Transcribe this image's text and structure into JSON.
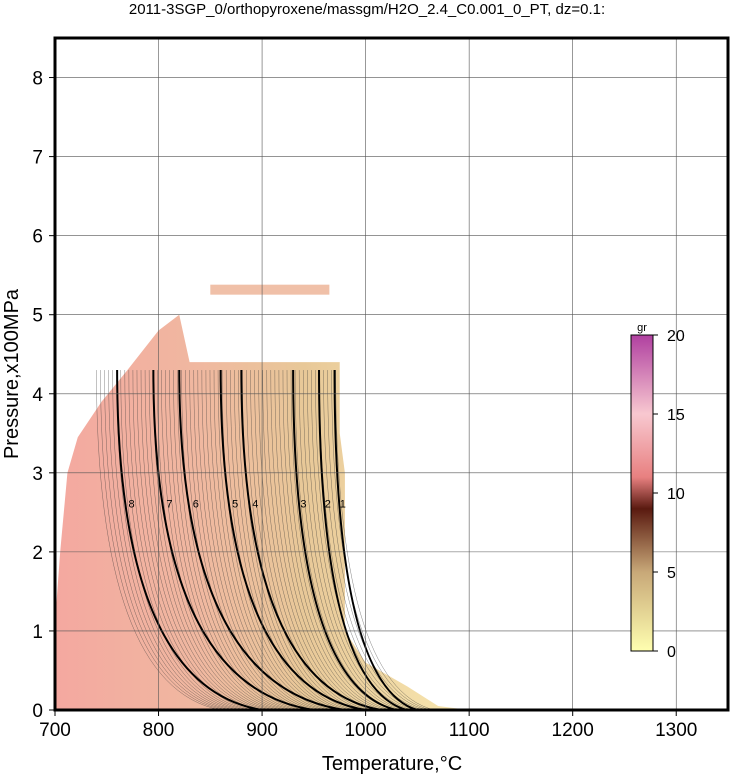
{
  "chart_data": {
    "type": "contour",
    "title": "2011-3SGP_0/orthopyroxene/massgm/H2O_2.4_C0.001_0_PT, dz=0.1:",
    "xlabel": "Temperature,°C",
    "ylabel": "Pressure,x100MPa",
    "xlim": [
      700,
      1350
    ],
    "ylim": [
      0,
      8.5
    ],
    "xticks": [
      700,
      800,
      900,
      1000,
      1100,
      1200,
      1300
    ],
    "yticks": [
      0,
      1,
      2,
      3,
      4,
      5,
      6,
      7,
      8
    ],
    "grid": true,
    "contour_levels": [
      1,
      2,
      3,
      4,
      5,
      6,
      7,
      8
    ],
    "colorbar": {
      "label": "gr",
      "lim": [
        0,
        20
      ],
      "ticks": [
        0,
        5,
        10,
        15,
        20
      ]
    }
  }
}
